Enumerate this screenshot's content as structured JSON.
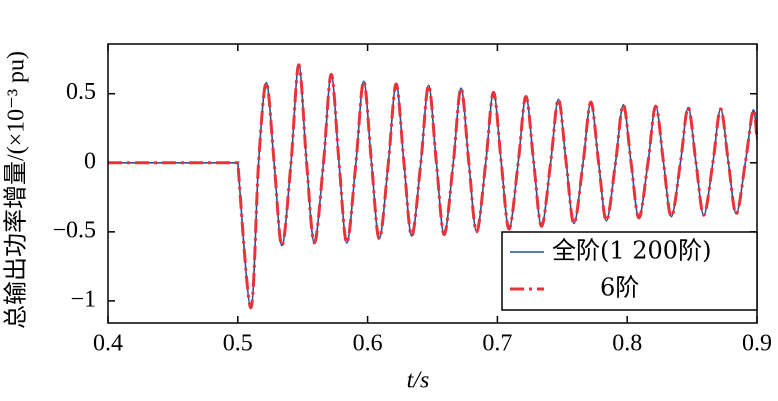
{
  "chart_data": {
    "type": "line",
    "xlabel": "t/s",
    "ylabel": "总输出功率增量/(×10⁻³ pu)",
    "x": [
      0.4,
      0.5,
      0.51,
      0.516,
      0.522,
      0.528,
      0.534,
      0.541,
      0.547,
      0.553,
      0.559,
      0.566,
      0.572,
      0.578,
      0.584,
      0.591,
      0.597,
      0.603,
      0.609,
      0.616,
      0.622,
      0.628,
      0.634,
      0.641,
      0.647,
      0.653,
      0.659,
      0.666,
      0.672,
      0.678,
      0.684,
      0.691,
      0.697,
      0.703,
      0.709,
      0.716,
      0.722,
      0.728,
      0.734,
      0.741,
      0.747,
      0.753,
      0.759,
      0.766,
      0.772,
      0.778,
      0.784,
      0.791,
      0.797,
      0.803,
      0.809,
      0.816,
      0.822,
      0.828,
      0.834,
      0.841,
      0.847,
      0.853,
      0.859,
      0.866,
      0.872,
      0.878,
      0.884,
      0.891,
      0.897,
      0.9
    ],
    "series": [
      {
        "name": "全阶(1 200阶)",
        "color": "#2b4f9e",
        "style": "solid",
        "values": [
          0,
          0,
          -1.05,
          0,
          0.58,
          0,
          -0.6,
          0,
          0.71,
          0,
          -0.58,
          0,
          0.64,
          0,
          -0.58,
          0,
          0.59,
          0,
          -0.55,
          0,
          0.57,
          0,
          -0.53,
          0,
          0.56,
          0,
          -0.52,
          0,
          0.54,
          0,
          -0.5,
          0,
          0.51,
          0,
          -0.48,
          0,
          0.48,
          0,
          -0.46,
          0,
          0.46,
          0,
          -0.44,
          0,
          0.44,
          0,
          -0.42,
          0,
          0.42,
          0,
          -0.4,
          0,
          0.41,
          0,
          -0.39,
          0,
          0.4,
          0,
          -0.38,
          0,
          0.39,
          0,
          -0.37,
          0,
          0.38,
          0.17
        ]
      },
      {
        "name": "6阶",
        "color": "#e8333a",
        "style": "dashdot",
        "values": [
          0,
          0,
          -1.05,
          0,
          0.58,
          0,
          -0.6,
          0,
          0.71,
          0,
          -0.58,
          0,
          0.64,
          0,
          -0.58,
          0,
          0.59,
          0,
          -0.55,
          0,
          0.57,
          0,
          -0.53,
          0,
          0.56,
          0,
          -0.52,
          0,
          0.54,
          0,
          -0.5,
          0,
          0.51,
          0,
          -0.48,
          0,
          0.48,
          0,
          -0.46,
          0,
          0.46,
          0,
          -0.44,
          0,
          0.44,
          0,
          -0.42,
          0,
          0.42,
          0,
          -0.4,
          0,
          0.41,
          0,
          -0.39,
          0,
          0.4,
          0,
          -0.38,
          0,
          0.39,
          0,
          -0.37,
          0,
          0.38,
          0.17
        ]
      }
    ],
    "xlim": [
      0.4,
      0.9
    ],
    "xticks": [
      0.4,
      0.5,
      0.6,
      0.7,
      0.8,
      0.9
    ],
    "ylim": [
      -1.16,
      0.86
    ],
    "yticks": [
      {
        "value": -1,
        "label": "−1"
      },
      {
        "value": -0.5,
        "label": "−0.5"
      },
      0,
      0.5
    ],
    "legend": "lower right"
  }
}
